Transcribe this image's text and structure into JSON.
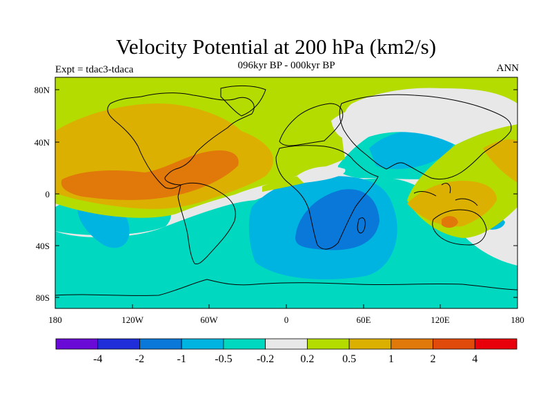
{
  "title": "Velocity Potential at 200 hPa (km2/s)",
  "subtitle": "096kyr BP - 000kyr BP",
  "left_label": "Expt = tdac3-tdaca",
  "right_label": "ANN",
  "lat_ticks": [
    "80N",
    "40N",
    "0",
    "40S",
    "80S"
  ],
  "lon_ticks": [
    "180",
    "120W",
    "60W",
    "0",
    "60E",
    "120E",
    "180"
  ],
  "colorbar": {
    "colors": [
      "#6a0ad6",
      "#1f2ed8",
      "#0a78d8",
      "#00b4e2",
      "#00d9c0",
      "#e8e8e8",
      "#b4dc00",
      "#dcb000",
      "#e0780a",
      "#e04a0a",
      "#e8000a"
    ],
    "labels": [
      "-4",
      "-2",
      "-1",
      "-0.5",
      "-0.2",
      "0.2",
      "0.5",
      "1",
      "2",
      "4"
    ]
  },
  "colors": {
    "c_neg1": "#0a78d8",
    "c_neg05": "#00b4e2",
    "c_neg02": "#00d9c0",
    "c_zero": "#e8e8e8",
    "c_pos02": "#b4dc00",
    "c_pos05": "#dcb000",
    "c_pos1": "#e0780a"
  }
}
